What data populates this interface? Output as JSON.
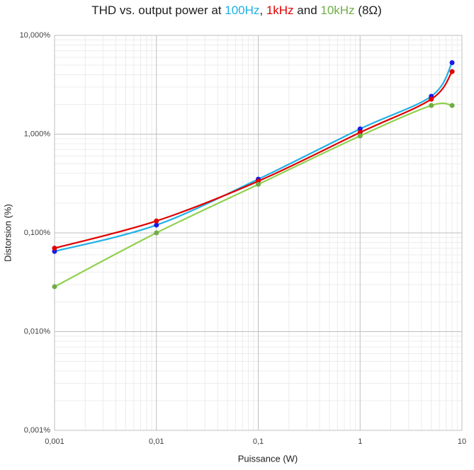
{
  "chart_data": {
    "type": "line",
    "title": [
      "THD vs. output power at ",
      "100Hz",
      ", ",
      "1kHz",
      " and ",
      "10kHz",
      " (8Ω)"
    ],
    "title_colors": [
      "#202020",
      "#1fb0e6",
      "#202020",
      "#e00000",
      "#202020",
      "#70ad47",
      "#202020"
    ],
    "x_label": "Puissance (W)",
    "y_label": "Distorsion (%)",
    "x": [
      0.001,
      0.01,
      0.1,
      1,
      5,
      8
    ],
    "xlim": [
      0.001,
      10
    ],
    "ylim": [
      0.001,
      10
    ],
    "x_log": true,
    "y_log": true,
    "grid": true,
    "minor_grid": true,
    "smooth": true,
    "xticks": [
      {
        "value": 0.001,
        "label": "0,001"
      },
      {
        "value": 0.01,
        "label": "0,01"
      },
      {
        "value": 0.1,
        "label": "0,1"
      },
      1,
      10
    ],
    "yticks": [
      {
        "value": 0.001,
        "label": "0,001%"
      },
      {
        "value": 0.01,
        "label": "0,010%"
      },
      {
        "value": 0.1,
        "label": "0,100%"
      },
      {
        "value": 1,
        "label": "1,000%"
      },
      {
        "value": 10,
        "label": "10,000%"
      }
    ],
    "series": [
      {
        "name": "100Hz",
        "color": "#1fb0e6",
        "marker_color": "#1a1ae6",
        "values": [
          0.065,
          0.12,
          0.35,
          1.13,
          2.42,
          5.3
        ]
      },
      {
        "name": "1kHz",
        "color": "#e00000",
        "marker_color": "#e00000",
        "values": [
          0.07,
          0.132,
          0.334,
          1.04,
          2.26,
          4.3
        ]
      },
      {
        "name": "10kHz",
        "color": "#92d050",
        "marker_color": "#70ad47",
        "values": [
          0.0285,
          0.1,
          0.31,
          0.96,
          1.95,
          1.95
        ]
      }
    ]
  }
}
